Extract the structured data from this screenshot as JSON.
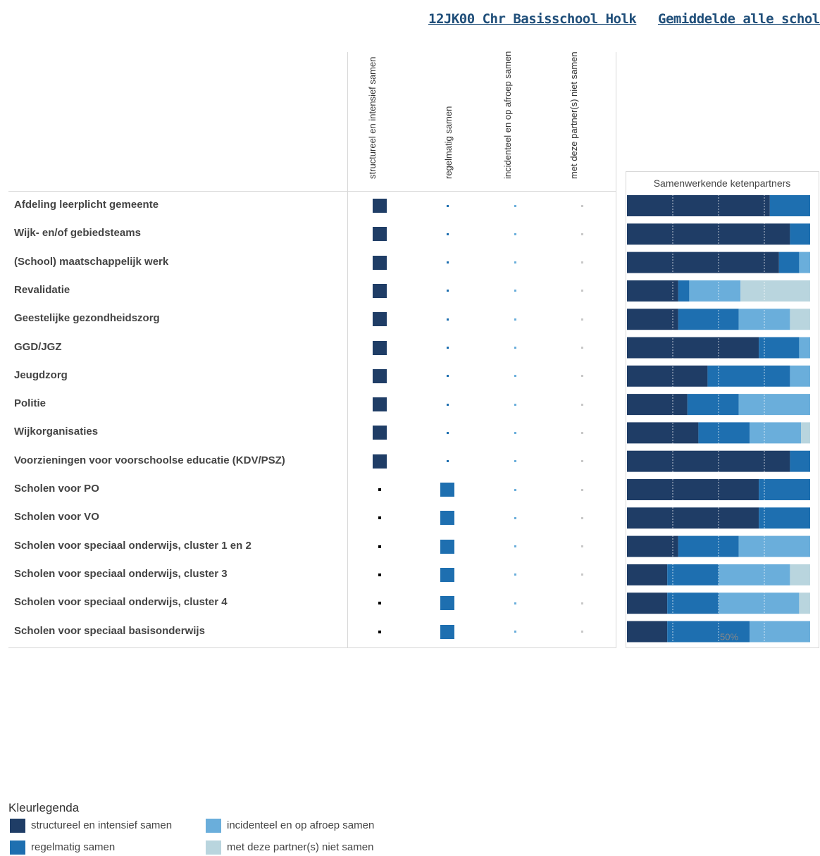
{
  "header": {
    "school_link": "12JK00 Chr Basisschool Holk",
    "average_link": "Gemiddelde alle scholen"
  },
  "columns": [
    {
      "label": "structureel en intensief samen",
      "color": "#1f3d66"
    },
    {
      "label": "regelmatig samen",
      "color": "#1e6fb0"
    },
    {
      "label": "incidenteel en op afroep samen",
      "color": "#6aaedb"
    },
    {
      "label": "met deze partner(s) niet samen",
      "color": "#b9d5de"
    }
  ],
  "school_selection": [
    0,
    0,
    0,
    0,
    0,
    0,
    0,
    0,
    0,
    0,
    1,
    1,
    1,
    1,
    1,
    1
  ],
  "chart_data": {
    "type": "bar",
    "title": "Samenwerkende ketenpartners",
    "categories": [
      "Afdeling leerplicht gemeente",
      "Wijk- en/of gebiedsteams",
      "(School) maatschappelijk werk",
      "Revalidatie",
      "Geestelijke gezondheidszorg",
      "GGD/JGZ",
      "Jeugdzorg",
      "Politie",
      "Wijkorganisaties",
      "Voorzieningen voor voorschoolse educatie (KDV/PSZ)",
      "Scholen voor PO",
      "Scholen voor VO",
      "Scholen voor speciaal onderwijs, cluster 1 en 2",
      "Scholen voor speciaal onderwijs, cluster 3",
      "Scholen voor speciaal onderwijs, cluster 4",
      "Scholen voor speciaal basisonderwijs"
    ],
    "stacked": true,
    "xlim": [
      0,
      100
    ],
    "series": [
      {
        "name": "structureel en intensief samen",
        "color": "#1f3d66",
        "values": [
          78,
          89,
          83,
          28,
          28,
          72,
          44,
          33,
          39,
          89,
          72,
          72,
          28,
          22,
          22,
          22
        ]
      },
      {
        "name": "regelmatig samen",
        "color": "#1e6fb0",
        "values": [
          22,
          11,
          11,
          6,
          33,
          22,
          45,
          28,
          28,
          11,
          28,
          28,
          33,
          28,
          28,
          45
        ]
      },
      {
        "name": "incidenteel en op afroep samen",
        "color": "#6aaedb",
        "values": [
          0,
          0,
          6,
          28,
          28,
          6,
          11,
          39,
          28,
          0,
          0,
          0,
          39,
          39,
          44,
          33
        ]
      },
      {
        "name": "met deze partner(s) niet samen",
        "color": "#b9d5de",
        "values": [
          0,
          0,
          0,
          38,
          11,
          0,
          0,
          0,
          5,
          0,
          0,
          0,
          0,
          11,
          6,
          0
        ]
      }
    ],
    "reference_lines": [
      25,
      50,
      75
    ],
    "annotation": "50%"
  },
  "legend": {
    "title": "Kleurlegenda",
    "items": [
      {
        "label": "structureel en intensief samen",
        "color": "#1f3d66"
      },
      {
        "label": "incidenteel en op afroep samen",
        "color": "#6aaedb"
      },
      {
        "label": "regelmatig samen",
        "color": "#1e6fb0"
      },
      {
        "label": "met deze partner(s) niet samen",
        "color": "#b9d5de"
      }
    ]
  }
}
